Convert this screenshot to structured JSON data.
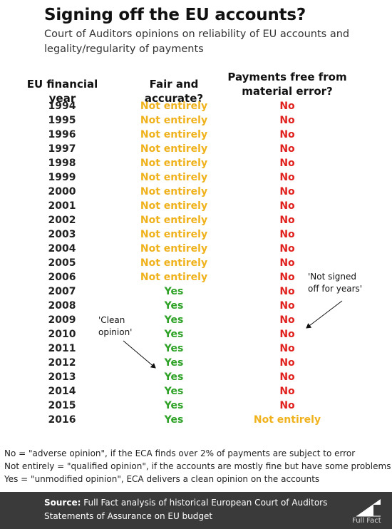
{
  "title": "Signing off the EU accounts?",
  "subtitle": "Court of Auditors opinions on reliability of EU accounts and legality/regularity of payments",
  "chart_data": {
    "type": "table",
    "columns": [
      "EU financial year",
      "Fair and accurate?",
      "Payments free from material error?"
    ],
    "rows": [
      {
        "year": "1994",
        "fair": "Not entirely",
        "payments": "No"
      },
      {
        "year": "1995",
        "fair": "Not entirely",
        "payments": "No"
      },
      {
        "year": "1996",
        "fair": "Not entirely",
        "payments": "No"
      },
      {
        "year": "1997",
        "fair": "Not entirely",
        "payments": "No"
      },
      {
        "year": "1998",
        "fair": "Not entirely",
        "payments": "No"
      },
      {
        "year": "1999",
        "fair": "Not entirely",
        "payments": "No"
      },
      {
        "year": "2000",
        "fair": "Not entirely",
        "payments": "No"
      },
      {
        "year": "2001",
        "fair": "Not entirely",
        "payments": "No"
      },
      {
        "year": "2002",
        "fair": "Not entirely",
        "payments": "No"
      },
      {
        "year": "2003",
        "fair": "Not entirely",
        "payments": "No"
      },
      {
        "year": "2004",
        "fair": "Not entirely",
        "payments": "No"
      },
      {
        "year": "2005",
        "fair": "Not entirely",
        "payments": "No"
      },
      {
        "year": "2006",
        "fair": "Not entirely",
        "payments": "No"
      },
      {
        "year": "2007",
        "fair": "Yes",
        "payments": "No"
      },
      {
        "year": "2008",
        "fair": "Yes",
        "payments": "No"
      },
      {
        "year": "2009",
        "fair": "Yes",
        "payments": "No"
      },
      {
        "year": "2010",
        "fair": "Yes",
        "payments": "No"
      },
      {
        "year": "2011",
        "fair": "Yes",
        "payments": "No"
      },
      {
        "year": "2012",
        "fair": "Yes",
        "payments": "No"
      },
      {
        "year": "2013",
        "fair": "Yes",
        "payments": "No"
      },
      {
        "year": "2014",
        "fair": "Yes",
        "payments": "No"
      },
      {
        "year": "2015",
        "fair": "Yes",
        "payments": "No"
      },
      {
        "year": "2016",
        "fair": "Yes",
        "payments": "Not entirely"
      }
    ],
    "annotations": {
      "clean_opinion": [
        "'Clean",
        "opinion'"
      ],
      "not_signed_off": [
        "'Not signed",
        "off for years'"
      ]
    }
  },
  "colors": {
    "yes": "#2ea226",
    "not_entirely": "#f0b21c",
    "no": "#e0201c",
    "footer_bg": "#3a3a3a"
  },
  "notes": [
    "No = \"adverse opinion\", if the ECA finds over 2% of payments are subject to error",
    "Not entirely = \"qualified opinion\", if the accounts are mostly fine but have some problems",
    "Yes = \"unmodified opinion\", ECA delivers a clean opinion on the accounts"
  ],
  "footer": {
    "source_label": "Source:",
    "source_line1": " Full Fact analysis of historical European Court of Auditors",
    "source_line2": "Statements of Assurance on EU budget",
    "logo_text": "Full Fact",
    "logo_icon": "full-fact-arrow-logo"
  }
}
